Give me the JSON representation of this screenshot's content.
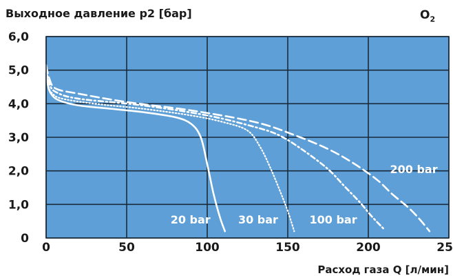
{
  "chart_data": {
    "type": "line",
    "title": "O2",
    "title_main": "O",
    "title_sub": "2",
    "ylabel": "Выходное давление p2 [бар]",
    "xlabel": "Расход газа Q [л/мин]",
    "xlim": [
      0,
      250
    ],
    "ylim": [
      0,
      6
    ],
    "x_ticks": [
      "0",
      "50",
      "100",
      "150",
      "200",
      "250"
    ],
    "y_ticks": [
      "0",
      "1,0",
      "2,0",
      "3,0",
      "4,0",
      "5,0",
      "6,0"
    ],
    "grid": true,
    "colors": {
      "plot_bg": "#5d9fd6",
      "grid": "#1a2a3a",
      "line": "#ffffff"
    },
    "series": [
      {
        "name": "20 bar",
        "style": "solid",
        "x": [
          0,
          1,
          3,
          8,
          20,
          40,
          60,
          80,
          90,
          96,
          100,
          104,
          108,
          111
        ],
        "y": [
          5.15,
          4.6,
          4.3,
          4.1,
          3.95,
          3.85,
          3.75,
          3.6,
          3.4,
          3.0,
          2.2,
          1.3,
          0.6,
          0.2
        ]
      },
      {
        "name": "30 bar",
        "style": "dotted",
        "x": [
          0,
          1,
          4,
          10,
          30,
          60,
          90,
          110,
          125,
          133,
          140,
          146,
          150,
          154
        ],
        "y": [
          5.05,
          4.55,
          4.3,
          4.15,
          4.0,
          3.85,
          3.65,
          3.45,
          3.2,
          2.7,
          2.0,
          1.3,
          0.8,
          0.2
        ]
      },
      {
        "name": "100 bar",
        "style": "dash-dot",
        "x": [
          0,
          2,
          6,
          20,
          60,
          100,
          130,
          145,
          160,
          175,
          185,
          195,
          202,
          210
        ],
        "y": [
          5.05,
          4.6,
          4.35,
          4.15,
          3.95,
          3.65,
          3.3,
          3.05,
          2.6,
          2.05,
          1.55,
          1.05,
          0.65,
          0.25
        ]
      },
      {
        "name": "200 bar",
        "style": "dashed",
        "x": [
          0,
          2,
          6,
          20,
          50,
          90,
          130,
          155,
          175,
          190,
          205,
          215,
          225,
          232,
          238
        ],
        "y": [
          5.15,
          4.75,
          4.45,
          4.3,
          4.05,
          3.8,
          3.45,
          3.05,
          2.65,
          2.25,
          1.75,
          1.3,
          0.9,
          0.55,
          0.2
        ]
      }
    ],
    "series_labels": [
      {
        "text": "20 bar",
        "x": 102,
        "y": 0.55,
        "align": "end"
      },
      {
        "text": "30 bar",
        "x": 144,
        "y": 0.55,
        "align": "end"
      },
      {
        "text": "100 bar",
        "x": 193,
        "y": 0.55,
        "align": "end"
      },
      {
        "text": "200 bar",
        "x": 243,
        "y": 2.05,
        "align": "end"
      }
    ]
  }
}
